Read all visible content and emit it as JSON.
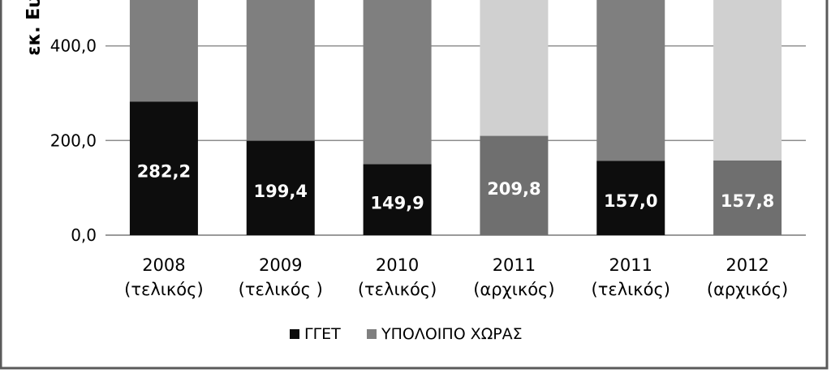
{
  "chart_data": {
    "type": "bar",
    "stacked": true,
    "ylabel": "εκ. Ευρώ",
    "ylim": [
      0,
      500
    ],
    "yticks": [
      "0,0",
      "200,0",
      "400,0"
    ],
    "ytick_values": [
      0,
      200,
      400
    ],
    "grid": true,
    "legend_position": "bottom",
    "categories": [
      {
        "line1": "2008",
        "line2": "(τελικός)"
      },
      {
        "line1": "2009",
        "line2": "(τελικός )"
      },
      {
        "line1": "2010",
        "line2": "(τελικός)"
      },
      {
        "line1": "2011",
        "line2": "(αρχικός)"
      },
      {
        "line1": "2011",
        "line2": "(τελικός)"
      },
      {
        "line1": "2012",
        "line2": "(αρχικός)"
      }
    ],
    "legend": [
      {
        "name": "ΓΓΕΤ",
        "color": "#0d0d0d"
      },
      {
        "name": "ΥΠΟΛΟΙΠΟ ΧΩΡΑΣ",
        "color": "#7f7f7f"
      }
    ],
    "bars": [
      {
        "bottom": 282.2,
        "label": "282,2",
        "bottom_color": "#0d0d0d",
        "top_color": "#7f7f7f"
      },
      {
        "bottom": 199.4,
        "label": "199,4",
        "bottom_color": "#0d0d0d",
        "top_color": "#7f7f7f"
      },
      {
        "bottom": 149.9,
        "label": "149,9",
        "bottom_color": "#0d0d0d",
        "top_color": "#7f7f7f"
      },
      {
        "bottom": 209.8,
        "label": "209,8",
        "bottom_color": "#6f6f6f",
        "top_color": "#d0d0d0"
      },
      {
        "bottom": 157.0,
        "label": "157,0",
        "bottom_color": "#0d0d0d",
        "top_color": "#7f7f7f"
      },
      {
        "bottom": 157.8,
        "label": "157,8",
        "bottom_color": "#6f6f6f",
        "top_color": "#d0d0d0"
      }
    ]
  }
}
